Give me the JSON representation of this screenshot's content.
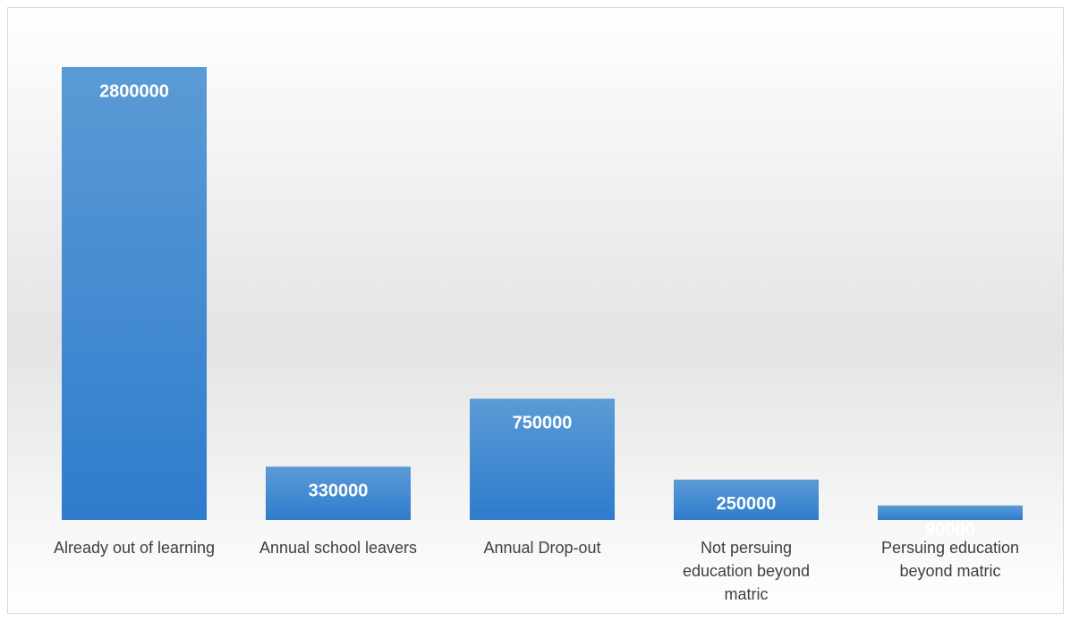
{
  "chart_data": {
    "type": "bar",
    "categories": [
      "Already out of learning",
      "Annual school leavers",
      "Annual Drop-out",
      "Not persuing education beyond matric",
      "Persuing education beyond matric"
    ],
    "values": [
      2800000,
      330000,
      750000,
      250000,
      90000
    ],
    "color": "#4a90d9"
  }
}
